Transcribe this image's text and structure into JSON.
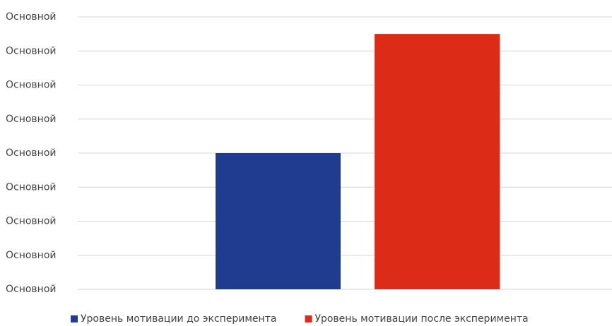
{
  "chart_data": {
    "type": "bar",
    "categories": [
      null
    ],
    "series": [
      {
        "name": "Уровень мотивации до эксперимента",
        "color": "#1f3c91",
        "values": [
          4
        ]
      },
      {
        "name": "Уровень мотивации после эксперимента",
        "color": "#dc2c17",
        "values": [
          7.5
        ]
      }
    ],
    "ylim": [
      0,
      8
    ],
    "yticks": [
      {
        "value": 0,
        "label": "Основной"
      },
      {
        "value": 1,
        "label": "Основной"
      },
      {
        "value": 2,
        "label": "Основной"
      },
      {
        "value": 3,
        "label": "Основной"
      },
      {
        "value": 4,
        "label": "Основной"
      },
      {
        "value": 5,
        "label": "Основной"
      },
      {
        "value": 6,
        "label": "Основной"
      },
      {
        "value": 7,
        "label": "Основной"
      },
      {
        "value": 8,
        "label": "Основной"
      }
    ],
    "grid": true,
    "legend": "bottom"
  }
}
